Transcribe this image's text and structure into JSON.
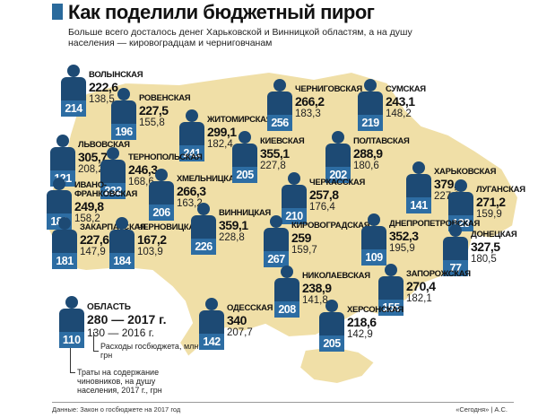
{
  "header": {
    "title": "Как поделили бюджетный пирог",
    "subtitle": "Больше всего досталось денег Харьковской и Винницкой областям, а на душу населения — кировоградцам и черниговчанам"
  },
  "colors": {
    "land": "#f0dfa7",
    "land_stroke": "#ffffff",
    "figure": "#1d4a74",
    "staff_box": "#2d6da3",
    "accent_bar": "#2a6a9c"
  },
  "regions": [
    {
      "name": "Волынская",
      "v2017": "222,6",
      "v2016": "138,5",
      "staff": "214"
    },
    {
      "name": "Ровенская",
      "v2017": "227,5",
      "v2016": "155,8",
      "staff": "196"
    },
    {
      "name": "Житомирская",
      "v2017": "299,1",
      "v2016": "182,4",
      "staff": "241"
    },
    {
      "name": "Черниговская",
      "v2017": "266,2",
      "v2016": "183,3",
      "staff": "256"
    },
    {
      "name": "Сумская",
      "v2017": "243,1",
      "v2016": "148,2",
      "staff": "219"
    },
    {
      "name": "Львовская",
      "v2017": "305,7",
      "v2016": "208,2",
      "staff": "121"
    },
    {
      "name": "Тернопольская",
      "v2017": "246,3",
      "v2016": "168,6",
      "staff": "232"
    },
    {
      "name": "Хмельницкая",
      "v2017": "266,3",
      "v2016": "163,2",
      "staff": "206"
    },
    {
      "name": "Киевская",
      "v2017": "355,1",
      "v2016": "227,8",
      "staff": "205"
    },
    {
      "name": "Полтавская",
      "v2017": "288,9",
      "v2016": "180,6",
      "staff": "202"
    },
    {
      "name": "Харьковская",
      "v2017": "379,8",
      "v2016": "227,9",
      "staff": "141"
    },
    {
      "name": "Ивано-Франковская",
      "v2017": "249,8",
      "v2016": "158,2",
      "staff": "181"
    },
    {
      "name": "Черкасская",
      "v2017": "257,8",
      "v2016": "176,4",
      "staff": "210"
    },
    {
      "name": "Луганская",
      "v2017": "271,2",
      "v2016": "159,9",
      "staff": "123"
    },
    {
      "name": "Закарпатская",
      "v2017": "227,6",
      "v2016": "147,9",
      "staff": "181"
    },
    {
      "name": "Черновицкая",
      "v2017": "167,2",
      "v2016": "103,9",
      "staff": "184"
    },
    {
      "name": "Винницкая",
      "v2017": "359,1",
      "v2016": "228,8",
      "staff": "226"
    },
    {
      "name": "Кировоградская",
      "v2017": "259",
      "v2016": "159,7",
      "staff": "267"
    },
    {
      "name": "Днепропетровская",
      "v2017": "352,3",
      "v2016": "195,9",
      "staff": "109"
    },
    {
      "name": "Донецкая",
      "v2017": "327,5",
      "v2016": "180,5",
      "staff": "77"
    },
    {
      "name": "Николаевская",
      "v2017": "238,9",
      "v2016": "141,8",
      "staff": "208"
    },
    {
      "name": "Запорожская",
      "v2017": "270,4",
      "v2016": "182,1",
      "staff": "155"
    },
    {
      "name": "Одесская",
      "v2017": "340",
      "v2016": "207,7",
      "staff": "142"
    },
    {
      "name": "Херсонская",
      "v2017": "218,6",
      "v2016": "142,9",
      "staff": "205"
    }
  ],
  "legend": {
    "staff": "110",
    "name": "Область",
    "v2017": "280 — 2017 г.",
    "v2016": "130 — 2016 г.",
    "note_expenses": "Расходы госбюджета, млн грн",
    "note_staff": "Траты на содержание чиновников, на душу населения, 2017 г., грн"
  },
  "footer": {
    "source": "Данные: Закон о госбюджете на 2017 год",
    "credit": "«Сегодня» | А.С."
  }
}
